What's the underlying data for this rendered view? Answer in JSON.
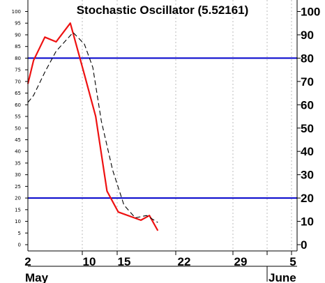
{
  "chart_data": {
    "type": "line",
    "title": "Stochastic Oscillator (5.52161)",
    "ylim": [
      -3,
      103
    ],
    "y_ticks_left": [
      "100",
      "95",
      "90",
      "85",
      "80",
      "75",
      "70",
      "65",
      "60",
      "55",
      "50",
      "45",
      "40",
      "35",
      "30",
      "25",
      "20",
      "15",
      "10",
      "5",
      "0"
    ],
    "y_ticks_right": [
      "100",
      "90",
      "80",
      "70",
      "60",
      "50",
      "40",
      "30",
      "20",
      "10",
      "0"
    ],
    "x_tick_labels": [
      "2",
      "10",
      "15",
      "22",
      "29",
      "5"
    ],
    "month_labels": [
      "May",
      "June"
    ],
    "reference_lines": [
      80,
      20
    ],
    "grid": "vertical dotted",
    "series": [
      {
        "style": "solid",
        "color": "#ee1111",
        "points": [
          [
            0,
            69
          ],
          [
            1,
            79
          ],
          [
            3,
            89
          ],
          [
            5,
            87
          ],
          [
            7.5,
            95
          ],
          [
            10,
            73
          ],
          [
            12,
            55
          ],
          [
            14,
            23
          ],
          [
            16,
            14
          ],
          [
            20,
            10.5
          ],
          [
            21.5,
            12.5
          ],
          [
            23,
            6
          ]
        ]
      },
      {
        "style": "dashed",
        "color": "#000000",
        "points": [
          [
            0,
            61
          ],
          [
            1,
            64
          ],
          [
            3,
            74
          ],
          [
            5,
            83
          ],
          [
            8,
            91
          ],
          [
            10,
            86
          ],
          [
            11.5,
            76
          ],
          [
            13,
            53
          ],
          [
            15,
            32
          ],
          [
            17,
            17
          ],
          [
            19,
            11.5
          ],
          [
            21,
            12.5
          ],
          [
            23,
            9.5
          ]
        ]
      }
    ]
  },
  "colors": {
    "ref_line": "#0000cc",
    "grid": "#bbbbbb",
    "frame": "#000000"
  }
}
